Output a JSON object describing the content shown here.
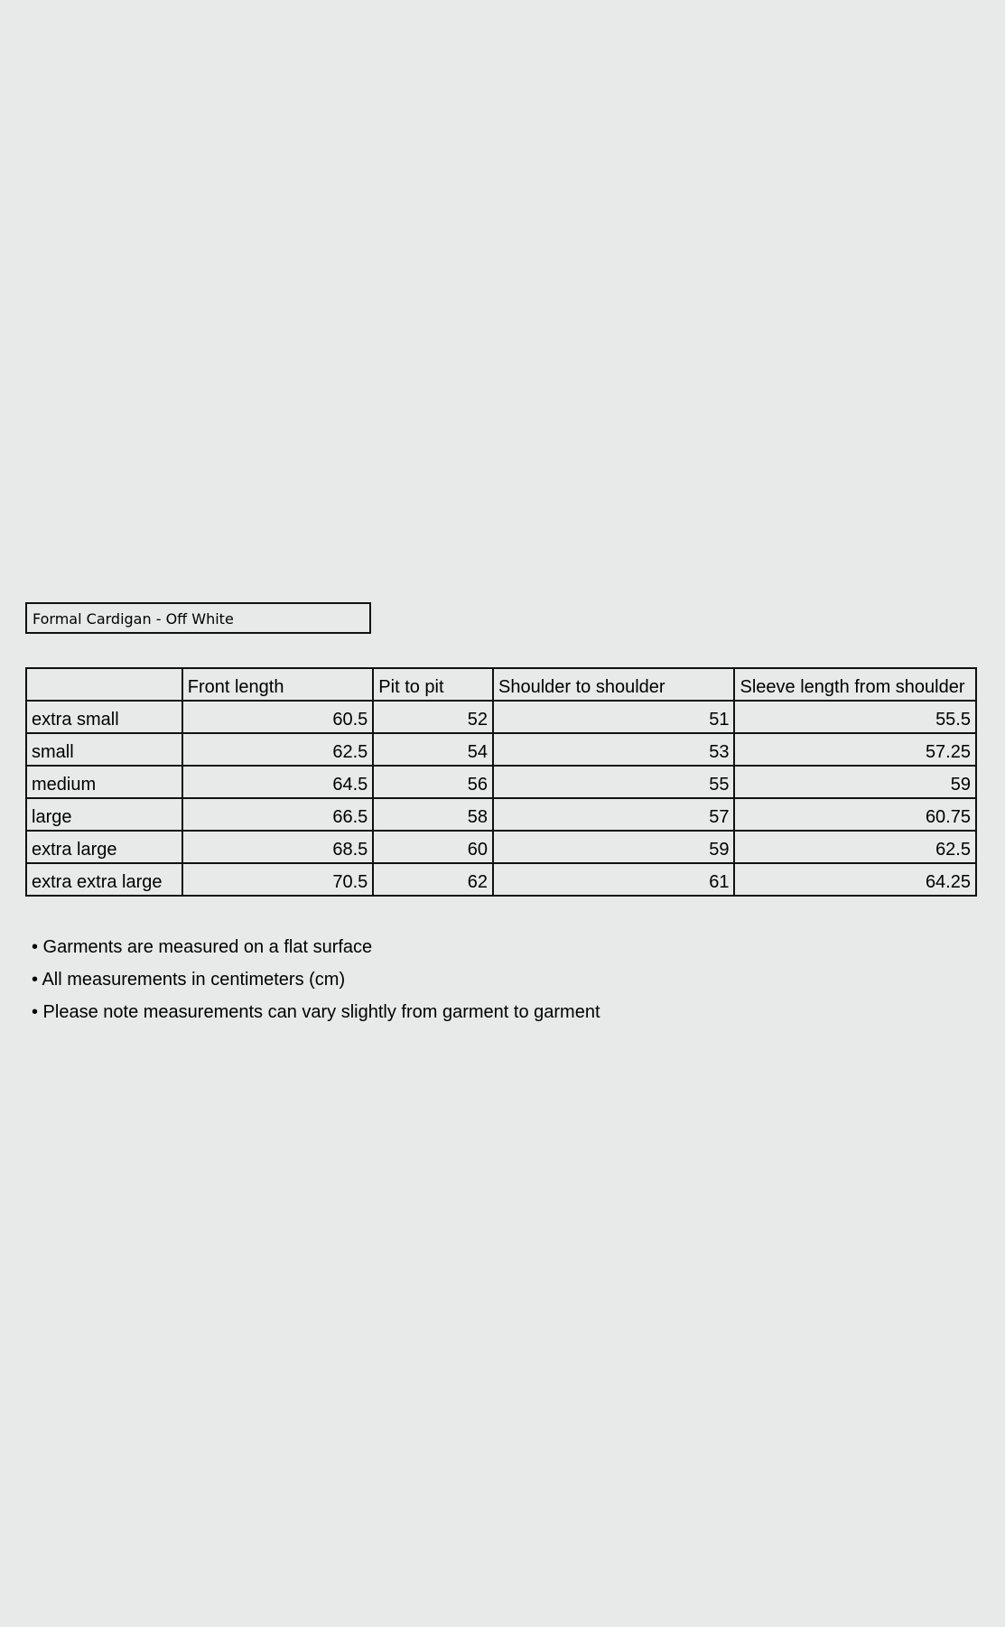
{
  "title": "Formal Cardigan - Off White",
  "table": {
    "headers": [
      "",
      "Front length",
      "Pit to pit",
      "Shoulder to shoulder",
      "Sleeve length from shoulder"
    ],
    "rows": [
      [
        "extra small",
        "60.5",
        "52",
        "51",
        "55.5"
      ],
      [
        "small",
        "62.5",
        "54",
        "53",
        "57.25"
      ],
      [
        "medium",
        "64.5",
        "56",
        "55",
        "59"
      ],
      [
        "large",
        "66.5",
        "58",
        "57",
        "60.75"
      ],
      [
        "extra large",
        "68.5",
        "60",
        "59",
        "62.5"
      ],
      [
        "extra extra large",
        "70.5",
        "62",
        "61",
        "64.25"
      ]
    ]
  },
  "notes": [
    "• Garments are measured on a flat surface",
    "• All measurements in centimeters (cm)",
    "• Please note measurements can vary slightly from garment to garment"
  ]
}
